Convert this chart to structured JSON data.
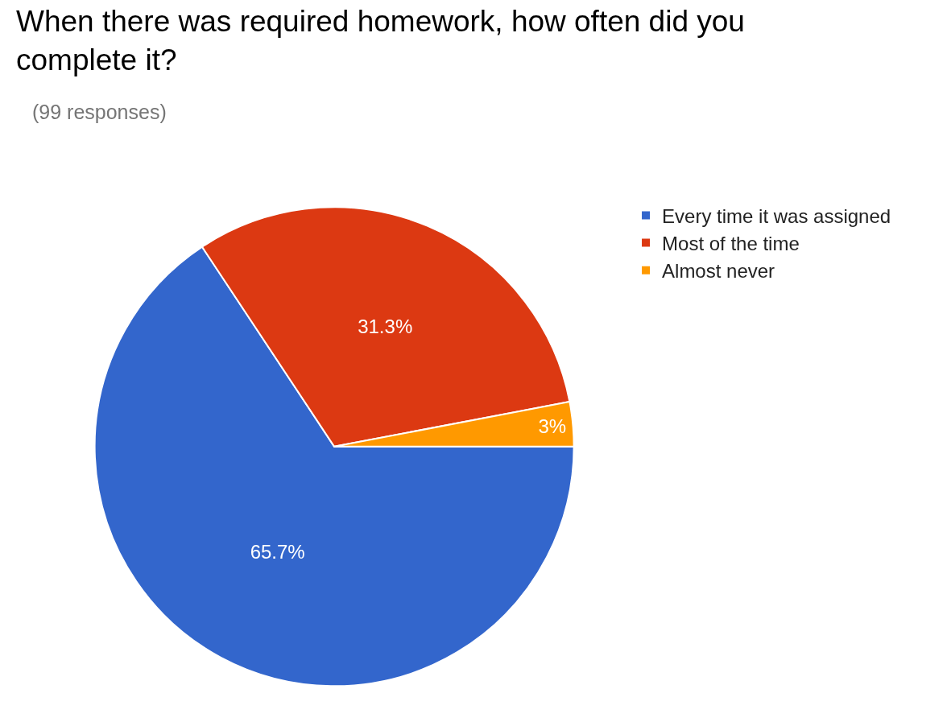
{
  "chart_data": {
    "type": "pie",
    "title": "When there was required homework, how often did you complete it?",
    "subtitle": "(99 responses)",
    "categories": [
      "Every time it was assigned",
      "Most of the time",
      "Almost never"
    ],
    "values": [
      65.7,
      31.3,
      3
    ],
    "colors": [
      "#3366cc",
      "#dc3912",
      "#ff9900"
    ],
    "value_labels": [
      "65.7%",
      "31.3%",
      "3%"
    ],
    "legend": "right"
  }
}
